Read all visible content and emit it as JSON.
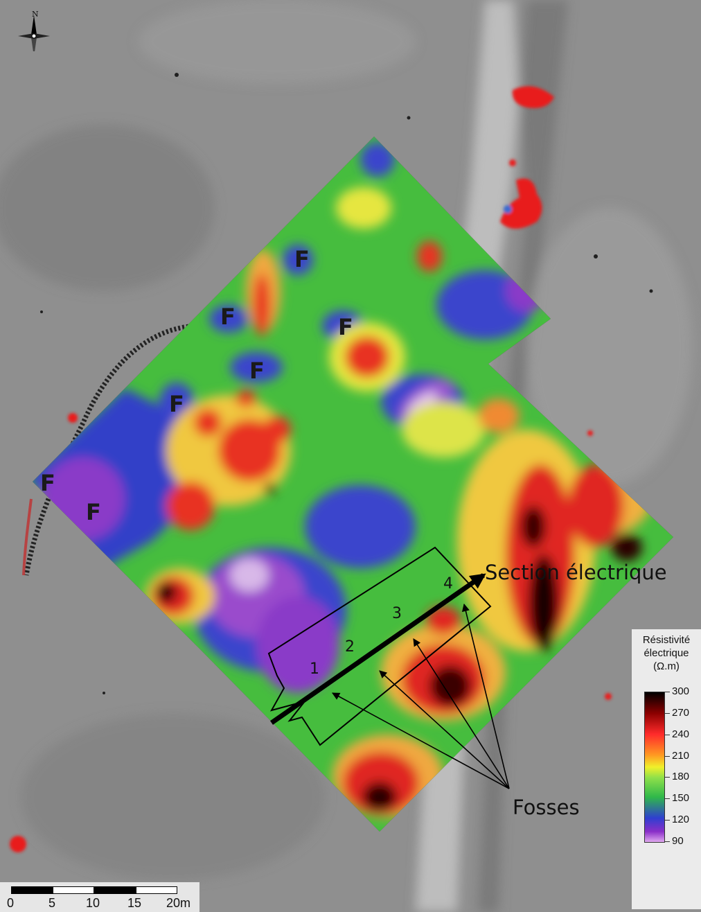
{
  "labels": {
    "f_marker": "F",
    "section": "Section électrique",
    "pits": "Fosses",
    "section_numbers": [
      "1",
      "2",
      "3",
      "4"
    ]
  },
  "compass": {
    "north": "N"
  },
  "legend": {
    "title_line1": "Résistivité",
    "title_line2": "électrique",
    "title_line3": "(Ω.m)",
    "ticks": [
      "300",
      "270",
      "240",
      "210",
      "180",
      "150",
      "120",
      "90"
    ]
  },
  "scale_bar": {
    "labels": [
      "0",
      "5",
      "10",
      "15",
      "20m"
    ]
  },
  "colors": {
    "high": "#000000",
    "mid_high": "#ff2b2b",
    "mid": "#f0f02a",
    "mid_low": "#2fb84a",
    "low": "#2f3fd0",
    "lowest": "#8a2fc8"
  }
}
